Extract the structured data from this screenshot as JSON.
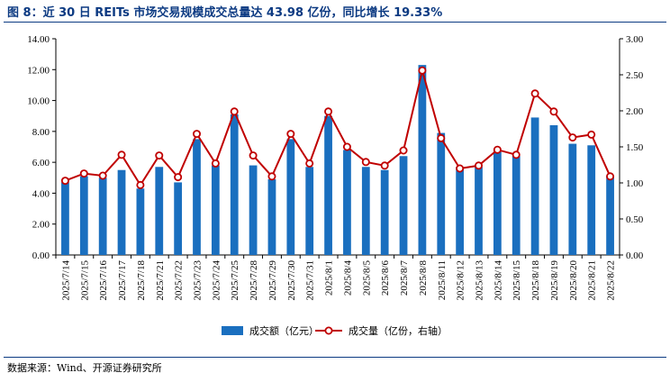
{
  "figure": {
    "title": "图 8：近 30 日 REITs 市场交易规模成交总量达 43.98 亿份，同比增长 19.33%",
    "source": "数据来源：Wind、开源证券研究所"
  },
  "colors": {
    "title": "#0c3a82",
    "bar": "#1a6fbf",
    "line": "#c00000",
    "marker_fill": "#ffffff"
  },
  "chart_data": {
    "type": "bar",
    "categories": [
      "2025/7/14",
      "2025/7/15",
      "2025/7/16",
      "2025/7/17",
      "2025/7/18",
      "2025/7/21",
      "2025/7/22",
      "2025/7/23",
      "2025/7/24",
      "2025/7/25",
      "2025/7/28",
      "2025/7/29",
      "2025/7/30",
      "2025/7/31",
      "2025/8/1",
      "2025/8/4",
      "2025/8/5",
      "2025/8/6",
      "2025/8/7",
      "2025/8/8",
      "2025/8/11",
      "2025/8/12",
      "2025/8/13",
      "2025/8/14",
      "2025/8/15",
      "2025/8/18",
      "2025/8/19",
      "2025/8/20",
      "2025/8/21",
      "2025/8/22"
    ],
    "series": [
      {
        "name": "成交额（亿元）",
        "type": "bar",
        "axis": "left",
        "values": [
          4.7,
          5.1,
          5.0,
          5.5,
          4.3,
          5.7,
          4.7,
          7.5,
          5.8,
          9.1,
          5.8,
          4.9,
          7.5,
          5.7,
          9.0,
          6.8,
          5.7,
          5.5,
          6.4,
          12.3,
          7.9,
          5.7,
          5.7,
          6.8,
          6.4,
          8.9,
          8.4,
          7.2,
          7.1,
          5.1
        ]
      },
      {
        "name": "成交量（亿份，右轴）",
        "type": "line",
        "axis": "right",
        "values": [
          1.03,
          1.13,
          1.1,
          1.39,
          0.97,
          1.38,
          1.08,
          1.68,
          1.27,
          1.99,
          1.38,
          1.09,
          1.68,
          1.27,
          1.99,
          1.5,
          1.29,
          1.24,
          1.45,
          2.56,
          1.62,
          1.2,
          1.24,
          1.46,
          1.39,
          2.24,
          1.99,
          1.63,
          1.67,
          1.09
        ]
      }
    ],
    "ylim_left": [
      0,
      14
    ],
    "yticks_left": [
      "0.00",
      "2.00",
      "4.00",
      "6.00",
      "8.00",
      "10.00",
      "12.00",
      "14.00"
    ],
    "ylim_right": [
      0,
      3
    ],
    "yticks_right": [
      "0.00",
      "0.50",
      "1.00",
      "1.50",
      "2.00",
      "2.50",
      "3.00"
    ],
    "legend_position": "bottom-center",
    "grid": false
  }
}
